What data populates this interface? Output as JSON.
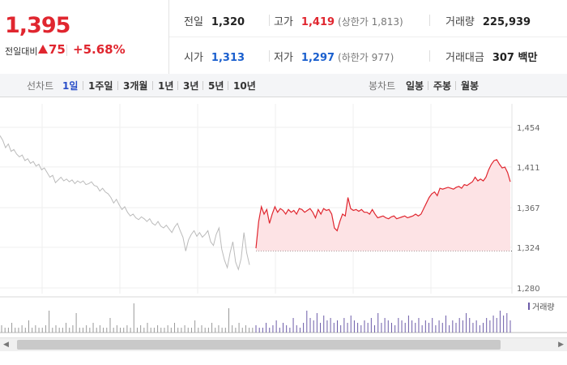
{
  "summary": {
    "current_price": "1,395",
    "change_label": "전일대비",
    "change_value": "75",
    "change_pct": "+5.68%",
    "prev_close": {
      "label": "전일",
      "value": "1,320"
    },
    "high": {
      "label": "고가",
      "value": "1,419",
      "limit": "(상한가 1,813)"
    },
    "volume": {
      "label": "거래량",
      "value": "225,939"
    },
    "open": {
      "label": "시가",
      "value": "1,313"
    },
    "low": {
      "label": "저가",
      "value": "1,297",
      "limit": "(하한가 977)"
    },
    "turnover": {
      "label": "거래대금",
      "value": "307 백만"
    }
  },
  "tabs": {
    "line_label": "선차트",
    "line_options": [
      "1일",
      "1주일",
      "3개월",
      "1년",
      "3년",
      "5년",
      "10년"
    ],
    "line_active": "1일",
    "candle_label": "봉차트",
    "candle_options": [
      "일봉",
      "주봉",
      "월봉"
    ]
  },
  "colors": {
    "up": "#e0262f",
    "down": "#1a5fce",
    "prev_line": "#bbbbbb",
    "fill": "#fde3e5",
    "volume": "#6c5ba8"
  },
  "chart_data": {
    "type": "line",
    "ylim": [
      1280,
      1454
    ],
    "yticks": [
      "1,454",
      "1,411",
      "1,367",
      "1,324",
      "1,280"
    ],
    "y_tick_values": [
      1454,
      1411,
      1367,
      1324,
      1280
    ],
    "reference_price": 1320,
    "legend": "거래량",
    "series": [
      {
        "values": [
          1445,
          1440,
          1432,
          1436,
          1428,
          1430,
          1425,
          1422,
          1424,
          1418,
          1420,
          1415,
          1417,
          1412,
          1414,
          1408,
          1410,
          1405,
          1400,
          1402,
          1394,
          1397,
          1400,
          1396,
          1398,
          1395,
          1397,
          1393,
          1396,
          1394,
          1396,
          1392,
          1393,
          1395,
          1391,
          1390,
          1385,
          1388,
          1384,
          1382,
          1378,
          1372,
          1376,
          1370,
          1365,
          1368,
          1362,
          1358,
          1360,
          1356,
          1354,
          1357,
          1355,
          1352,
          1355,
          1350,
          1348,
          1352,
          1347,
          1345,
          1348,
          1344,
          1340,
          1346,
          1350,
          1342,
          1335,
          1320,
          1332,
          1338,
          1342,
          1336,
          1340,
          1335,
          1338,
          1342,
          1330,
          1326,
          1338,
          1345,
          1322,
          1310,
          1302,
          1318,
          1330,
          1308,
          1300,
          1312,
          1340,
          1318,
          1305
        ]
      },
      {
        "values": [
          1323,
          1352,
          1368,
          1360,
          1365,
          1350,
          1360,
          1368,
          1362,
          1366,
          1364,
          1360,
          1365,
          1362,
          1364,
          1360,
          1366,
          1365,
          1362,
          1364,
          1366,
          1362,
          1356,
          1365,
          1360,
          1366,
          1364,
          1365,
          1360,
          1345,
          1342,
          1352,
          1360,
          1358,
          1378,
          1366,
          1364,
          1365,
          1363,
          1365,
          1362,
          1362,
          1360,
          1365,
          1360,
          1356,
          1357,
          1358,
          1356,
          1355,
          1357,
          1358,
          1355,
          1356,
          1357,
          1358,
          1356,
          1357,
          1358,
          1360,
          1358,
          1360,
          1366,
          1372,
          1378,
          1382,
          1384,
          1380,
          1388,
          1387,
          1388,
          1389,
          1388,
          1387,
          1389,
          1390,
          1388,
          1392,
          1391,
          1393,
          1395,
          1400,
          1396,
          1398,
          1396,
          1400,
          1408,
          1414,
          1418,
          1419,
          1414,
          1410,
          1411,
          1405,
          1395
        ]
      }
    ],
    "volume": [
      3,
      2,
      2,
      4,
      2,
      2,
      3,
      2,
      5,
      2,
      3,
      2,
      2,
      3,
      9,
      2,
      3,
      2,
      2,
      4,
      2,
      3,
      8,
      2,
      2,
      3,
      2,
      4,
      2,
      3,
      2,
      2,
      6,
      2,
      3,
      2,
      2,
      3,
      2,
      12,
      2,
      3,
      2,
      4,
      2,
      2,
      3,
      2,
      2,
      3,
      2,
      4,
      2,
      2,
      3,
      2,
      2,
      5,
      2,
      3,
      2,
      2,
      4,
      2,
      3,
      2,
      2,
      10,
      3,
      2,
      4,
      2,
      3,
      2,
      2,
      3,
      2,
      2,
      4,
      2,
      3,
      5,
      2,
      4,
      3,
      2,
      6,
      3,
      2,
      4,
      9,
      6,
      5,
      8,
      4,
      7,
      5,
      6,
      4,
      5,
      3,
      6,
      4,
      7,
      5,
      4,
      3,
      5,
      4,
      6,
      3,
      8,
      4,
      6,
      5,
      4,
      3,
      6,
      5,
      4,
      7,
      5,
      4,
      6,
      3,
      5,
      4,
      6,
      3,
      5,
      4,
      7,
      3,
      5,
      4,
      6,
      5,
      8,
      6,
      4,
      5,
      3,
      4,
      6,
      5,
      7,
      6,
      9,
      7,
      8,
      5
    ]
  }
}
